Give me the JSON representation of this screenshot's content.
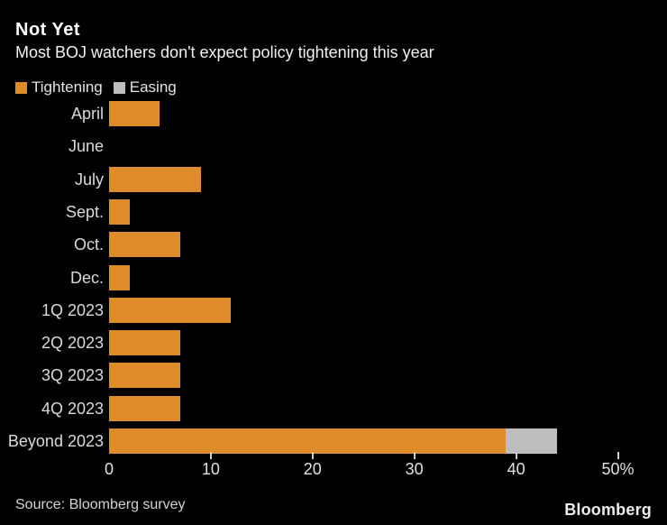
{
  "header": {
    "title": "Not Yet",
    "subtitle": "Most BOJ watchers don't expect policy tightening this year"
  },
  "legend": [
    {
      "label": "Tightening",
      "color": "#de8b2a"
    },
    {
      "label": "Easing",
      "color": "#bdbdbd"
    }
  ],
  "chart_data": {
    "type": "bar",
    "orientation": "horizontal",
    "stacked": true,
    "title": "Not Yet",
    "subtitle": "Most BOJ watchers don't expect policy tightening this year",
    "categories": [
      "April",
      "June",
      "July",
      "Sept.",
      "Oct.",
      "Dec.",
      "1Q 2023",
      "2Q 2023",
      "3Q 2023",
      "4Q 2023",
      "Beyond 2023"
    ],
    "series": [
      {
        "name": "Tightening",
        "color": "#de8b2a",
        "values": [
          5,
          0,
          9,
          2,
          7,
          2,
          12,
          7,
          7,
          7,
          39
        ]
      },
      {
        "name": "Easing",
        "color": "#bdbdbd",
        "values": [
          0,
          0,
          0,
          0,
          0,
          0,
          0,
          0,
          0,
          0,
          5
        ]
      }
    ],
    "xlim": [
      0,
      50
    ],
    "x_ticks": [
      0,
      10,
      20,
      30,
      40,
      50
    ],
    "x_tick_labels": [
      "0",
      "10",
      "20",
      "30",
      "40",
      "50%"
    ],
    "unit": "%",
    "grid": "off",
    "legend_position": "top-left"
  },
  "footer": {
    "source": "Source: Bloomberg survey",
    "brand": "Bloomberg"
  }
}
